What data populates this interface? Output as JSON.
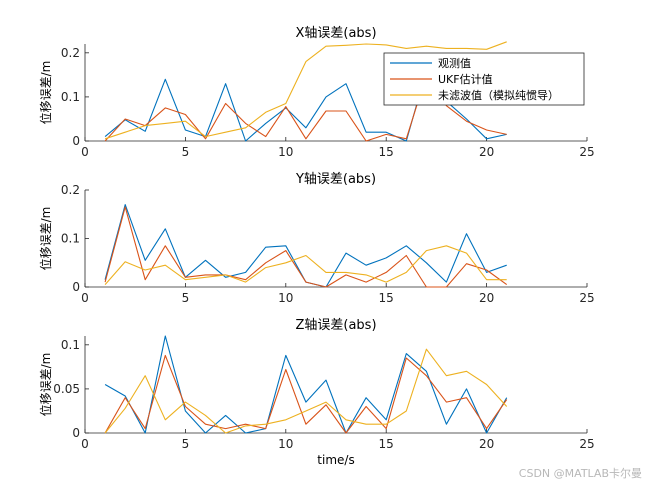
{
  "watermark": "CSDN @MATLAB卡尔曼",
  "xlabel": "time/s",
  "colors": {
    "observed": "#0072BD",
    "ukf": "#D95319",
    "unfiltered": "#EDB120",
    "axis": "#262626"
  },
  "chart_data": [
    {
      "type": "line",
      "title": "X轴误差(abs)",
      "ylabel": "位移误差/m",
      "xlim": [
        0,
        25
      ],
      "ylim": [
        0,
        0.22
      ],
      "xticks": [
        0,
        5,
        10,
        15,
        20,
        25
      ],
      "yticks": [
        0,
        0.1,
        0.2
      ],
      "ytick_labels": [
        "0",
        "0.1",
        "0.2"
      ],
      "x": [
        1,
        2,
        3,
        4,
        5,
        6,
        7,
        8,
        9,
        10,
        11,
        12,
        13,
        14,
        15,
        16,
        17,
        18,
        19,
        20,
        21
      ],
      "legend": {
        "position": "top-right",
        "entries": [
          "观测值",
          "UKF估计值",
          "未滤波值（模拟纯惯导）"
        ]
      },
      "series": [
        {
          "name": "观测值",
          "values": [
            0.01,
            0.048,
            0.022,
            0.14,
            0.025,
            0.01,
            0.13,
            0.0,
            0.04,
            0.075,
            0.03,
            0.1,
            0.13,
            0.02,
            0.02,
            0.0,
            0.16,
            0.09,
            0.05,
            0.005,
            0.015
          ]
        },
        {
          "name": "UKF估计值",
          "values": [
            0.0,
            0.05,
            0.035,
            0.075,
            0.06,
            0.005,
            0.085,
            0.04,
            0.01,
            0.078,
            0.005,
            0.068,
            0.068,
            0.0,
            0.015,
            0.005,
            0.15,
            0.08,
            0.045,
            0.025,
            0.015
          ]
        },
        {
          "name": "未滤波值（模拟纯惯导）",
          "values": [
            0.005,
            0.02,
            0.035,
            0.04,
            0.045,
            0.01,
            0.02,
            0.03,
            0.065,
            0.085,
            0.18,
            0.215,
            0.217,
            0.22,
            0.218,
            0.21,
            0.215,
            0.21,
            0.21,
            0.208,
            0.225
          ]
        }
      ]
    },
    {
      "type": "line",
      "title": "Y轴误差(abs)",
      "ylabel": "位移误差/m",
      "xlim": [
        0,
        25
      ],
      "ylim": [
        0,
        0.2
      ],
      "xticks": [
        0,
        5,
        10,
        15,
        20,
        25
      ],
      "yticks": [
        0,
        0.1,
        0.2
      ],
      "ytick_labels": [
        "0",
        "0.1",
        "0.2"
      ],
      "x": [
        1,
        2,
        3,
        4,
        5,
        6,
        7,
        8,
        9,
        10,
        11,
        12,
        13,
        14,
        15,
        16,
        17,
        18,
        19,
        20,
        21
      ],
      "series": [
        {
          "values": [
            0.015,
            0.17,
            0.055,
            0.12,
            0.02,
            0.055,
            0.02,
            0.03,
            0.082,
            0.085,
            0.01,
            0.0,
            0.07,
            0.045,
            0.06,
            0.085,
            0.05,
            0.01,
            0.11,
            0.03,
            0.045
          ]
        },
        {
          "values": [
            0.01,
            0.165,
            0.015,
            0.085,
            0.02,
            0.025,
            0.025,
            0.015,
            0.05,
            0.075,
            0.01,
            0.0,
            0.025,
            0.01,
            0.03,
            0.065,
            0.0,
            0.0,
            0.048,
            0.035,
            0.005
          ]
        },
        {
          "values": [
            0.005,
            0.052,
            0.035,
            0.045,
            0.015,
            0.02,
            0.025,
            0.01,
            0.04,
            0.05,
            0.065,
            0.03,
            0.03,
            0.025,
            0.01,
            0.03,
            0.075,
            0.085,
            0.07,
            0.015,
            0.015
          ]
        }
      ]
    },
    {
      "type": "line",
      "title": "Z轴误差(abs)",
      "ylabel": "位移误差/m",
      "xlabel": "time/s",
      "xlim": [
        0,
        25
      ],
      "ylim": [
        0,
        0.11
      ],
      "xticks": [
        0,
        5,
        10,
        15,
        20,
        25
      ],
      "yticks": [
        0,
        0.05,
        0.1
      ],
      "ytick_labels": [
        "0",
        "0.05",
        "0.1"
      ],
      "x": [
        1,
        2,
        3,
        4,
        5,
        6,
        7,
        8,
        9,
        10,
        11,
        12,
        13,
        14,
        15,
        16,
        17,
        18,
        19,
        20,
        21
      ],
      "series": [
        {
          "values": [
            0.055,
            0.042,
            0.0,
            0.11,
            0.025,
            0.0,
            0.02,
            0.0,
            0.005,
            0.088,
            0.035,
            0.06,
            0.0,
            0.04,
            0.015,
            0.09,
            0.07,
            0.01,
            0.05,
            0.0,
            0.04
          ]
        },
        {
          "values": [
            0.0,
            0.04,
            0.005,
            0.088,
            0.03,
            0.01,
            0.005,
            0.01,
            0.005,
            0.072,
            0.01,
            0.032,
            0.0,
            0.03,
            0.005,
            0.085,
            0.065,
            0.035,
            0.04,
            0.005,
            0.038
          ]
        },
        {
          "values": [
            0.0,
            0.028,
            0.065,
            0.015,
            0.035,
            0.02,
            0.0,
            0.008,
            0.01,
            0.015,
            0.025,
            0.035,
            0.015,
            0.01,
            0.01,
            0.025,
            0.095,
            0.065,
            0.07,
            0.055,
            0.03
          ]
        }
      ]
    }
  ]
}
